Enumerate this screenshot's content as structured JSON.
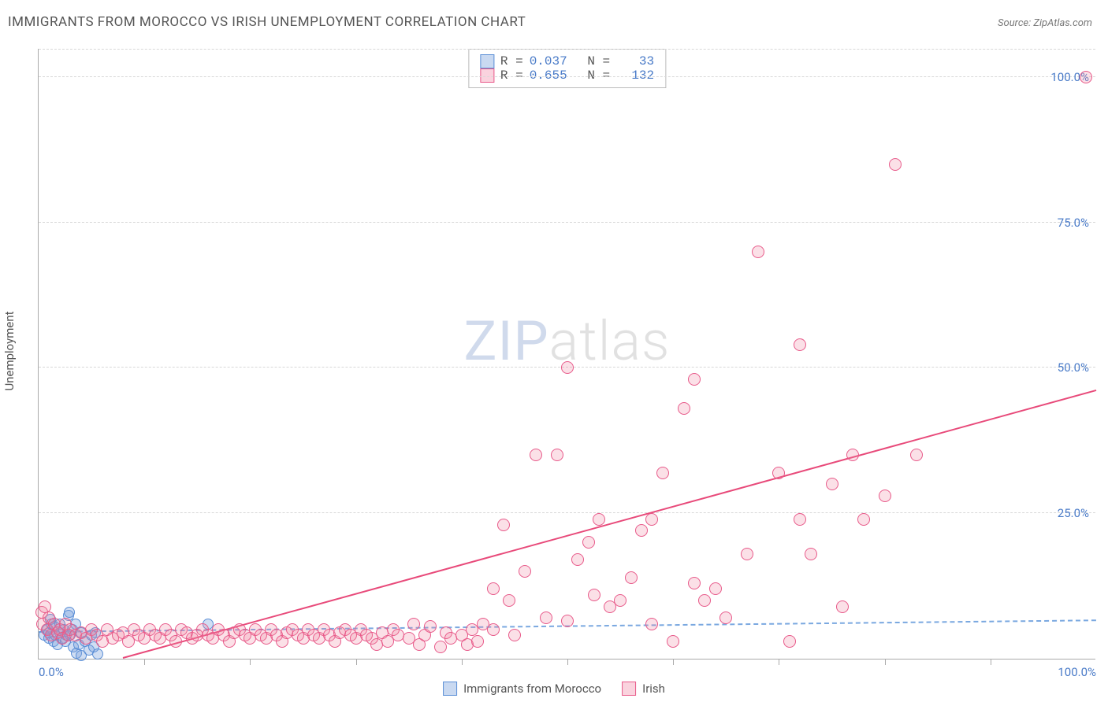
{
  "chart": {
    "title": "IMMIGRANTS FROM MOROCCO VS IRISH UNEMPLOYMENT CORRELATION CHART",
    "source_label": "Source: ZipAtlas.com",
    "ylabel": "Unemployment",
    "watermark_a": "ZIP",
    "watermark_b": "atlas",
    "type": "scatter",
    "background_color": "#ffffff",
    "grid_color": "#d8d8d8",
    "axis_color": "#aaaaaa",
    "title_color": "#555555",
    "label_text_color": "#555555",
    "tick_text_color": "#4a7bc8",
    "xlim": [
      0,
      100
    ],
    "ylim": [
      0,
      105
    ],
    "yticks": [
      {
        "v": 25,
        "label": "25.0%"
      },
      {
        "v": 50,
        "label": "50.0%"
      },
      {
        "v": 75,
        "label": "75.0%"
      },
      {
        "v": 100,
        "label": "100.0%"
      }
    ],
    "xticks_minor": [
      10,
      20,
      30,
      40,
      50,
      60,
      70,
      80,
      90
    ],
    "xtick_labels": [
      {
        "v": 0,
        "label": "0.0%"
      },
      {
        "v": 100,
        "label": "100.0%"
      }
    ],
    "series": [
      {
        "name": "Immigrants from Morocco",
        "marker_fill": "rgba(120,160,220,0.35)",
        "marker_stroke": "#5b8fd6",
        "marker_size": 14,
        "trend_color": "#7aa8e0",
        "trend_style": "dashed",
        "trend_width": 2,
        "R": "0.037",
        "N": "33",
        "trend": {
          "x1": 0,
          "y1": 4.5,
          "x2": 100,
          "y2": 6.5
        },
        "points": [
          [
            0.5,
            4
          ],
          [
            0.8,
            5
          ],
          [
            1,
            3.5
          ],
          [
            1,
            4.5
          ],
          [
            1.2,
            6
          ],
          [
            1.4,
            3
          ],
          [
            1.5,
            5.5
          ],
          [
            1.6,
            4
          ],
          [
            1.8,
            2.5
          ],
          [
            2,
            4.5
          ],
          [
            2,
            6
          ],
          [
            2.2,
            3.5
          ],
          [
            2.4,
            5
          ],
          [
            2.6,
            4
          ],
          [
            2.8,
            7.5
          ],
          [
            3,
            4
          ],
          [
            3.2,
            5
          ],
          [
            3.3,
            2
          ],
          [
            3.5,
            6
          ],
          [
            3.6,
            1
          ],
          [
            3.8,
            2.5
          ],
          [
            4,
            4.5
          ],
          [
            4,
            0.5
          ],
          [
            4.4,
            3
          ],
          [
            4.8,
            1.5
          ],
          [
            5,
            4
          ],
          [
            5.2,
            2
          ],
          [
            5.6,
            0.8
          ],
          [
            5.4,
            4.5
          ],
          [
            16,
            6
          ],
          [
            2.9,
            8
          ],
          [
            1.1,
            6.8
          ],
          [
            2.5,
            3
          ]
        ]
      },
      {
        "name": "Irish",
        "marker_fill": "rgba(240,130,160,0.25)",
        "marker_stroke": "#e85a8a",
        "marker_size": 16,
        "trend_color": "#e84a7a",
        "trend_style": "solid",
        "trend_width": 2,
        "R": "0.655",
        "N": "132",
        "trend": {
          "x1": 8,
          "y1": 0,
          "x2": 100,
          "y2": 46
        },
        "points": [
          [
            0.3,
            8
          ],
          [
            0.4,
            6
          ],
          [
            0.6,
            9
          ],
          [
            0.8,
            5
          ],
          [
            1,
            7
          ],
          [
            1.2,
            4
          ],
          [
            1.5,
            6
          ],
          [
            1.8,
            4.5
          ],
          [
            2,
            5
          ],
          [
            2.2,
            3.5
          ],
          [
            2.5,
            6
          ],
          [
            2.8,
            4
          ],
          [
            3,
            5
          ],
          [
            3.5,
            4
          ],
          [
            4,
            4.5
          ],
          [
            4.5,
            3.5
          ],
          [
            5,
            5
          ],
          [
            5.5,
            4
          ],
          [
            6,
            3
          ],
          [
            6.5,
            5
          ],
          [
            7,
            3.5
          ],
          [
            7.5,
            4
          ],
          [
            8,
            4.5
          ],
          [
            8.5,
            3
          ],
          [
            9,
            5
          ],
          [
            9.5,
            4
          ],
          [
            10,
            3.5
          ],
          [
            10.5,
            5
          ],
          [
            11,
            4
          ],
          [
            11.5,
            3.5
          ],
          [
            12,
            5
          ],
          [
            12.5,
            4
          ],
          [
            13,
            3
          ],
          [
            13.5,
            5
          ],
          [
            14,
            4.5
          ],
          [
            14.5,
            3.5
          ],
          [
            15,
            4
          ],
          [
            15.5,
            5
          ],
          [
            16,
            4
          ],
          [
            16.5,
            3.5
          ],
          [
            17,
            5
          ],
          [
            17.5,
            4
          ],
          [
            18,
            3
          ],
          [
            18.5,
            4.5
          ],
          [
            19,
            5
          ],
          [
            19.5,
            4
          ],
          [
            20,
            3.5
          ],
          [
            20.5,
            5
          ],
          [
            21,
            4
          ],
          [
            21.5,
            3.5
          ],
          [
            22,
            5
          ],
          [
            22.5,
            4
          ],
          [
            23,
            3
          ],
          [
            23.5,
            4.5
          ],
          [
            24,
            5
          ],
          [
            24.5,
            4
          ],
          [
            25,
            3.5
          ],
          [
            25.5,
            5
          ],
          [
            26,
            4
          ],
          [
            26.5,
            3.5
          ],
          [
            27,
            5
          ],
          [
            27.5,
            4
          ],
          [
            28,
            3
          ],
          [
            28.5,
            4.5
          ],
          [
            29,
            5
          ],
          [
            29.5,
            4
          ],
          [
            30,
            3.5
          ],
          [
            30.5,
            5
          ],
          [
            31,
            4
          ],
          [
            31.5,
            3.5
          ],
          [
            32,
            2.5
          ],
          [
            32.5,
            4.5
          ],
          [
            33,
            3
          ],
          [
            33.5,
            5
          ],
          [
            34,
            4
          ],
          [
            35,
            3.5
          ],
          [
            35.5,
            6
          ],
          [
            36,
            2.5
          ],
          [
            36.5,
            4
          ],
          [
            37,
            5.5
          ],
          [
            38,
            2
          ],
          [
            38.5,
            4.5
          ],
          [
            39,
            3.5
          ],
          [
            40,
            4
          ],
          [
            40.5,
            2.5
          ],
          [
            41,
            5
          ],
          [
            41.5,
            3
          ],
          [
            42,
            6
          ],
          [
            43,
            5
          ],
          [
            43,
            12
          ],
          [
            44,
            23
          ],
          [
            44.5,
            10
          ],
          [
            45,
            4
          ],
          [
            46,
            15
          ],
          [
            47,
            35
          ],
          [
            48,
            7
          ],
          [
            49,
            35
          ],
          [
            50,
            6.5
          ],
          [
            50,
            50
          ],
          [
            51,
            17
          ],
          [
            52,
            20
          ],
          [
            52.5,
            11
          ],
          [
            53,
            24
          ],
          [
            54,
            9
          ],
          [
            55,
            10
          ],
          [
            56,
            14
          ],
          [
            57,
            22
          ],
          [
            58,
            6
          ],
          [
            58,
            24
          ],
          [
            59,
            32
          ],
          [
            60,
            3
          ],
          [
            61,
            43
          ],
          [
            62,
            13
          ],
          [
            62,
            48
          ],
          [
            63,
            10
          ],
          [
            64,
            12
          ],
          [
            65,
            7
          ],
          [
            67,
            18
          ],
          [
            68,
            70
          ],
          [
            70,
            32
          ],
          [
            71,
            3
          ],
          [
            72,
            24
          ],
          [
            72,
            54
          ],
          [
            73,
            18
          ],
          [
            75,
            30
          ],
          [
            76,
            9
          ],
          [
            77,
            35
          ],
          [
            78,
            24
          ],
          [
            80,
            28
          ],
          [
            81,
            85
          ],
          [
            83,
            35
          ],
          [
            99,
            100
          ]
        ]
      }
    ],
    "stats_legend": {
      "R_label": "R =",
      "N_label": "N ="
    },
    "bottom_legend_items": [
      {
        "swatch": "blue",
        "label": "Immigrants from Morocco"
      },
      {
        "swatch": "pink",
        "label": "Irish"
      }
    ]
  }
}
